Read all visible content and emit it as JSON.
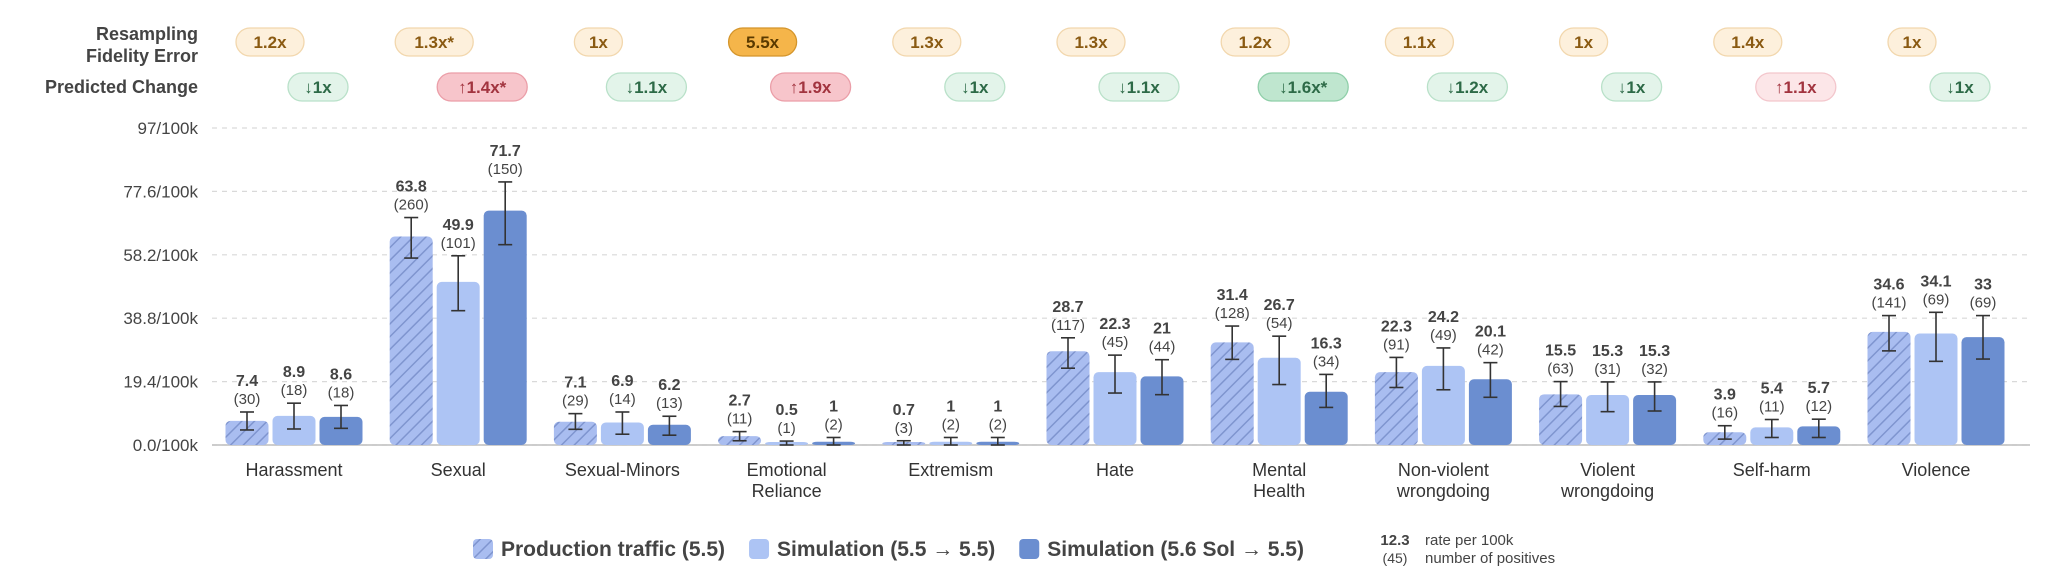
{
  "chart_data": {
    "type": "bar",
    "row_labels": {
      "fidelity": [
        "Resampling",
        "Fidelity Error"
      ],
      "predicted": "Predicted Change"
    },
    "y_ticks": [
      "0.0/100k",
      "19.4/100k",
      "38.8/100k",
      "58.2/100k",
      "77.6/100k",
      "97/100k"
    ],
    "ylim": [
      0,
      97
    ],
    "grid": true,
    "categories": [
      [
        "Harassment"
      ],
      [
        "Sexual"
      ],
      [
        "Sexual-Minors"
      ],
      [
        "Emotional",
        "Reliance"
      ],
      [
        "Extremism"
      ],
      [
        "Hate"
      ],
      [
        "Mental",
        "Health"
      ],
      [
        "Non-violent",
        "wrongdoing"
      ],
      [
        "Violent",
        "wrongdoing"
      ],
      [
        "Self-harm"
      ],
      [
        "Violence"
      ]
    ],
    "fidelity_error": [
      "1.2x",
      "1.3x*",
      "1x",
      "5.5x",
      "1.3x",
      "1.3x",
      "1.2x",
      "1.1x",
      "1x",
      "1.4x",
      "1x"
    ],
    "fidelity_highlight": [
      false,
      false,
      false,
      true,
      false,
      false,
      false,
      false,
      false,
      false,
      false
    ],
    "predicted_change": [
      "↓1x",
      "↑1.4x*",
      "↓1.1x",
      "↑1.9x",
      "↓1x",
      "↓1.1x",
      "↓1.6x*",
      "↓1.2x",
      "↓1x",
      "↑1.1x",
      "↓1x"
    ],
    "predicted_direction": [
      "down",
      "up",
      "down",
      "up",
      "down",
      "down",
      "down",
      "down",
      "down",
      "up",
      "down"
    ],
    "predicted_strong": [
      false,
      true,
      false,
      true,
      false,
      false,
      true,
      false,
      false,
      false,
      false
    ],
    "series": [
      {
        "name": "Production traffic (5.5)",
        "style": "hatched",
        "color": "#a9bdf0",
        "values": [
          7.4,
          63.8,
          7.1,
          2.7,
          0.7,
          28.7,
          31.4,
          22.3,
          15.5,
          3.9,
          34.6
        ],
        "value_labels": [
          "7.4",
          "63.8",
          "7.1",
          "2.7",
          "0.7",
          "28.7",
          "31.4",
          "22.3",
          "15.5",
          "3.9",
          "34.6"
        ],
        "counts": [
          "(30)",
          "(260)",
          "(29)",
          "(11)",
          "(3)",
          "(117)",
          "(128)",
          "(91)",
          "(63)",
          "(16)",
          "(141)"
        ],
        "ci_low": [
          4.6,
          57.2,
          4.8,
          1.3,
          0.0,
          23.5,
          26.2,
          17.6,
          11.8,
          1.8,
          28.8
        ],
        "ci_high": [
          10.1,
          69.6,
          9.6,
          4.1,
          1.3,
          32.8,
          36.4,
          26.8,
          19.4,
          5.9,
          39.6
        ]
      },
      {
        "name": "Simulation (5.5 → 5.5)",
        "style": "solid",
        "color": "#adc4f4",
        "values": [
          8.9,
          49.9,
          6.9,
          0.5,
          1.0,
          22.3,
          26.7,
          24.2,
          15.3,
          5.4,
          34.1
        ],
        "value_labels": [
          "8.9",
          "49.9",
          "6.9",
          "0.5",
          "1",
          "22.3",
          "26.7",
          "24.2",
          "15.3",
          "5.4",
          "34.1"
        ],
        "counts": [
          "(18)",
          "(101)",
          "(14)",
          "(1)",
          "(2)",
          "(45)",
          "(54)",
          "(49)",
          "(31)",
          "(11)",
          "(69)"
        ],
        "ci_low": [
          4.9,
          41.1,
          3.3,
          0.0,
          0.0,
          15.9,
          18.5,
          16.9,
          10.2,
          2.3,
          25.6
        ],
        "ci_high": [
          12.8,
          57.9,
          10.1,
          1.2,
          2.3,
          27.5,
          33.3,
          29.7,
          19.3,
          7.8,
          40.6
        ]
      },
      {
        "name": "Simulation (5.6 Sol → 5.5)",
        "style": "solid",
        "color": "#6b8ed0",
        "values": [
          8.6,
          71.7,
          6.2,
          1.0,
          1.0,
          21.0,
          16.3,
          20.1,
          15.3,
          5.7,
          33.0
        ],
        "value_labels": [
          "8.6",
          "71.7",
          "6.2",
          "1",
          "1",
          "21",
          "16.3",
          "20.1",
          "15.3",
          "5.7",
          "33"
        ],
        "counts": [
          "(18)",
          "(150)",
          "(13)",
          "(2)",
          "(2)",
          "(44)",
          "(34)",
          "(42)",
          "(32)",
          "(12)",
          "(69)"
        ],
        "ci_low": [
          5.1,
          61.3,
          3.0,
          0.0,
          0.0,
          15.4,
          11.5,
          14.6,
          10.4,
          2.3,
          26.3
        ],
        "ci_high": [
          12.1,
          80.5,
          8.8,
          2.3,
          2.3,
          26.1,
          21.6,
          25.2,
          19.3,
          7.9,
          39.6
        ]
      }
    ],
    "legend_note": {
      "value": "12.3",
      "count": "(45)",
      "value_label": "rate per 100k",
      "count_label": "number of positives"
    },
    "legend_position": "bottom"
  }
}
